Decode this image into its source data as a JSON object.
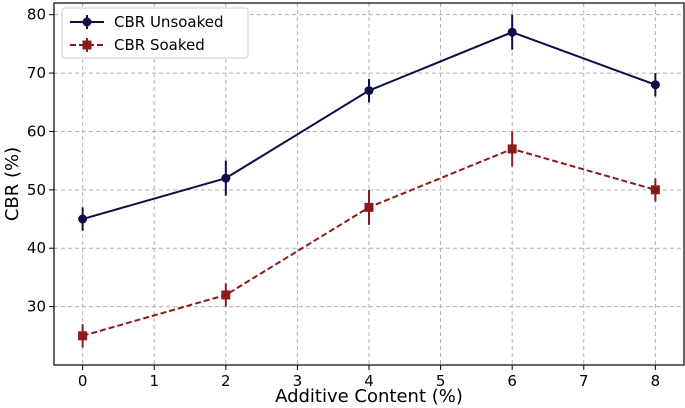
{
  "chart_data": {
    "type": "line",
    "title": "",
    "xlabel": "Additive Content (%)",
    "ylabel": "CBR (%)",
    "xlim": [
      -0.4,
      8.4
    ],
    "ylim": [
      20,
      82
    ],
    "xticks": [
      0,
      1,
      2,
      3,
      4,
      5,
      6,
      7,
      8
    ],
    "yticks": [
      30,
      40,
      50,
      60,
      70,
      80
    ],
    "grid": true,
    "legend_position": "upper-left",
    "x": [
      0,
      2,
      4,
      6,
      8
    ],
    "series": [
      {
        "name": "CBR Unsoaked",
        "values": [
          45,
          52,
          67,
          77,
          68
        ],
        "errors": [
          2,
          3,
          2,
          3,
          2
        ],
        "color": "#0d0d4a",
        "marker": "circle",
        "linestyle": "solid"
      },
      {
        "name": "CBR Soaked",
        "values": [
          25,
          32,
          47,
          57,
          50
        ],
        "errors": [
          2,
          2,
          3,
          3,
          2
        ],
        "color": "#8b1a1a",
        "marker": "square",
        "linestyle": "dashed"
      }
    ]
  }
}
